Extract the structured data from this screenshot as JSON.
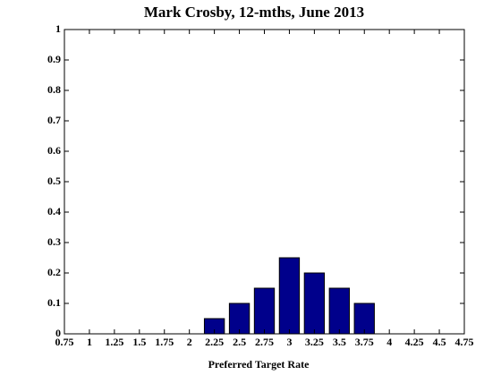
{
  "chart_data": {
    "type": "bar",
    "title": "Mark Crosby, 12-mths, June 2013",
    "x_label": "Preferred Target Rate",
    "x": [
      2.25,
      2.5,
      2.75,
      3,
      3.25,
      3.5,
      3.75
    ],
    "values": [
      0.05,
      0.1,
      0.15,
      0.25,
      0.2,
      0.15,
      0.1
    ],
    "color": "#00008b",
    "xlim": [
      0.75,
      4.75
    ],
    "xticks": [
      0.75,
      1,
      1.25,
      1.5,
      1.75,
      2,
      2.25,
      2.5,
      2.75,
      3,
      3.25,
      3.5,
      3.75,
      4,
      4.25,
      4.5,
      4.75
    ],
    "ylim": [
      0,
      1
    ],
    "yticks": [
      0,
      0.1,
      0.2,
      0.3,
      0.4,
      0.5,
      0.6,
      0.7,
      0.8,
      0.9,
      1
    ]
  }
}
